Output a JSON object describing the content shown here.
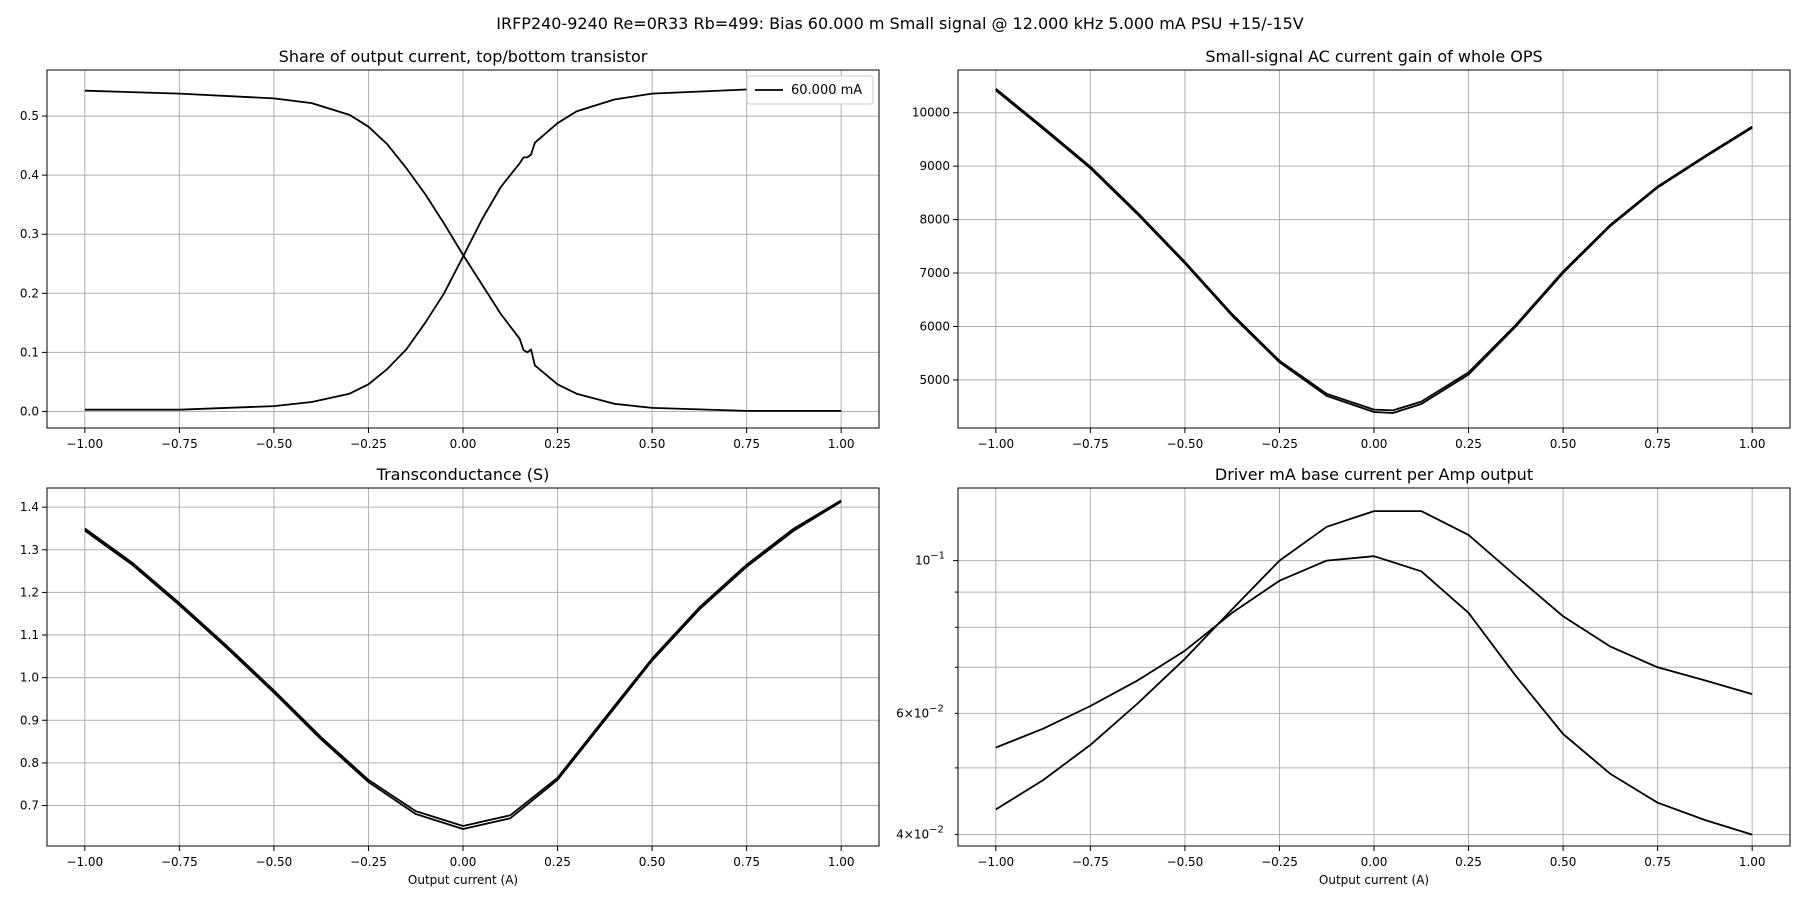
{
  "figure": {
    "suptitle": "IRFP240-9240 Re=0R33 Rb=499: Bias 60.000 m Small signal @ 12.000 kHz 5.000 mA PSU +15/-15V",
    "line_color": "#000000",
    "grid_color": "#b0b0b0"
  },
  "chart_data": [
    {
      "type": "line",
      "title": "Share of output current, top/bottom transistor",
      "xlabel": "",
      "ylabel": "",
      "xlim": [
        -1.1,
        1.1
      ],
      "ylim": [
        -0.028,
        0.578
      ],
      "xticks": [
        -1.0,
        -0.75,
        -0.5,
        -0.25,
        0.0,
        0.25,
        0.5,
        0.75,
        1.0
      ],
      "xtick_labels": [
        "−1.00",
        "−0.75",
        "−0.50",
        "−0.25",
        "0.00",
        "0.25",
        "0.50",
        "0.75",
        "1.00"
      ],
      "yticks": [
        0.0,
        0.1,
        0.2,
        0.3,
        0.4,
        0.5
      ],
      "ytick_labels": [
        "0.0",
        "0.1",
        "0.2",
        "0.3",
        "0.4",
        "0.5"
      ],
      "grid": true,
      "legend": {
        "position": "top-right",
        "entries": [
          "60.000 mA"
        ]
      },
      "series": [
        {
          "name": "60.000 mA",
          "x": [
            -1.0,
            -0.75,
            -0.5,
            -0.4,
            -0.3,
            -0.25,
            -0.2,
            -0.15,
            -0.1,
            -0.05,
            0.0,
            0.05,
            0.1,
            0.15,
            0.16,
            0.17,
            0.18,
            0.19,
            0.25,
            0.3,
            0.4,
            0.5,
            0.75,
            1.0
          ],
          "y": [
            0.543,
            0.538,
            0.53,
            0.522,
            0.502,
            0.482,
            0.452,
            0.412,
            0.368,
            0.318,
            0.265,
            0.215,
            0.165,
            0.123,
            0.104,
            0.1,
            0.105,
            0.078,
            0.046,
            0.03,
            0.013,
            0.006,
            0.001,
            0.001
          ]
        },
        {
          "x": [
            -1.0,
            -0.75,
            -0.5,
            -0.4,
            -0.3,
            -0.25,
            -0.2,
            -0.15,
            -0.1,
            -0.05,
            0.0,
            0.05,
            0.1,
            0.15,
            0.16,
            0.17,
            0.18,
            0.19,
            0.25,
            0.3,
            0.4,
            0.5,
            0.75,
            1.0
          ],
          "y": [
            0.003,
            0.003,
            0.009,
            0.016,
            0.03,
            0.046,
            0.072,
            0.105,
            0.15,
            0.2,
            0.262,
            0.325,
            0.38,
            0.42,
            0.43,
            0.43,
            0.435,
            0.455,
            0.488,
            0.508,
            0.528,
            0.538,
            0.545,
            0.547
          ]
        }
      ]
    },
    {
      "type": "line",
      "title": "Small-signal AC current gain of whole OPS",
      "xlabel": "",
      "ylabel": "",
      "xlim": [
        -1.1,
        1.1
      ],
      "ylim": [
        4100,
        10800
      ],
      "xticks": [
        -1.0,
        -0.75,
        -0.5,
        -0.25,
        0.0,
        0.25,
        0.5,
        0.75,
        1.0
      ],
      "xtick_labels": [
        "−1.00",
        "−0.75",
        "−0.50",
        "−0.25",
        "0.00",
        "0.25",
        "0.50",
        "0.75",
        "1.00"
      ],
      "yticks": [
        5000,
        6000,
        7000,
        8000,
        9000,
        10000
      ],
      "ytick_labels": [
        "5000",
        "6000",
        "7000",
        "8000",
        "9000",
        "10000"
      ],
      "grid": true,
      "series": [
        {
          "x": [
            -1.0,
            -0.875,
            -0.75,
            -0.625,
            -0.5,
            -0.375,
            -0.25,
            -0.125,
            0.0,
            0.05,
            0.125,
            0.25,
            0.375,
            0.5,
            0.625,
            0.75,
            0.875,
            1.0
          ],
          "y": [
            10420,
            9700,
            8960,
            8100,
            7180,
            6200,
            5330,
            4700,
            4400,
            4380,
            4550,
            5100,
            6000,
            7000,
            7880,
            8600,
            9170,
            9720
          ]
        },
        {
          "x": [
            -1.0,
            -0.875,
            -0.75,
            -0.625,
            -0.5,
            -0.375,
            -0.25,
            -0.125,
            0.0,
            0.05,
            0.125,
            0.25,
            0.375,
            0.5,
            0.625,
            0.75,
            0.875,
            1.0
          ],
          "y": [
            10450,
            9730,
            8990,
            8130,
            7210,
            6230,
            5360,
            4740,
            4445,
            4430,
            4595,
            5140,
            6030,
            7030,
            7905,
            8620,
            9190,
            9740
          ]
        }
      ]
    },
    {
      "type": "line",
      "title": "Transconductance (S)",
      "xlabel": "Output current (A)",
      "ylabel": "",
      "xlim": [
        -1.1,
        1.1
      ],
      "ylim": [
        0.605,
        1.445
      ],
      "xticks": [
        -1.0,
        -0.75,
        -0.5,
        -0.25,
        0.0,
        0.25,
        0.5,
        0.75,
        1.0
      ],
      "xtick_labels": [
        "−1.00",
        "−0.75",
        "−0.50",
        "−0.25",
        "0.00",
        "0.25",
        "0.50",
        "0.75",
        "1.00"
      ],
      "yticks": [
        0.7,
        0.8,
        0.9,
        1.0,
        1.1,
        1.2,
        1.3,
        1.4
      ],
      "ytick_labels": [
        "0.7",
        "0.8",
        "0.9",
        "1.0",
        "1.1",
        "1.2",
        "1.3",
        "1.4"
      ],
      "grid": true,
      "series": [
        {
          "x": [
            -1.0,
            -0.875,
            -0.75,
            -0.625,
            -0.5,
            -0.375,
            -0.25,
            -0.125,
            0.0,
            0.125,
            0.25,
            0.375,
            0.5,
            0.625,
            0.75,
            0.875,
            1.0
          ],
          "y": [
            1.345,
            1.265,
            1.17,
            1.07,
            0.965,
            0.855,
            0.755,
            0.68,
            0.645,
            0.67,
            0.76,
            0.9,
            1.04,
            1.16,
            1.26,
            1.345,
            1.413
          ]
        },
        {
          "x": [
            -1.0,
            -0.875,
            -0.75,
            -0.625,
            -0.5,
            -0.375,
            -0.25,
            -0.125,
            0.0,
            0.125,
            0.25,
            0.375,
            0.5,
            0.625,
            0.75,
            0.875,
            1.0
          ],
          "y": [
            1.35,
            1.27,
            1.175,
            1.075,
            0.97,
            0.86,
            0.76,
            0.687,
            0.652,
            0.677,
            0.765,
            0.905,
            1.045,
            1.165,
            1.265,
            1.35,
            1.416
          ]
        }
      ]
    },
    {
      "type": "line",
      "title": "Driver mA base current per Amp output",
      "xlabel": "Output current (A)",
      "ylabel": "",
      "yscale": "log",
      "xlim": [
        -1.1,
        1.1
      ],
      "ylim": [
        0.0385,
        0.1275
      ],
      "xticks": [
        -1.0,
        -0.75,
        -0.5,
        -0.25,
        0.0,
        0.25,
        0.5,
        0.75,
        1.0
      ],
      "xtick_labels": [
        "−1.00",
        "−0.75",
        "−0.50",
        "−0.25",
        "0.00",
        "0.25",
        "0.50",
        "0.75",
        "1.00"
      ],
      "yticks_major": [
        0.1
      ],
      "ytick_major_labels": [
        "10"
      ],
      "ytick_major_exponents": [
        "−1"
      ],
      "yticks_minor": [
        0.04,
        0.05,
        0.06,
        0.07,
        0.08,
        0.09
      ],
      "ytick_minor_labels": [
        "",
        "",
        "6×10",
        "",
        "",
        ""
      ],
      "ytick_minor_exponents": [
        "",
        "",
        "−2",
        "",
        "",
        ""
      ],
      "ytick_minor_label_alt": {
        "0.04": [
          "4×10",
          "−2"
        ]
      },
      "grid": true,
      "series": [
        {
          "x": [
            -1.0,
            -0.875,
            -0.75,
            -0.625,
            -0.5,
            -0.375,
            -0.25,
            -0.125,
            0.0,
            0.125,
            0.25,
            0.375,
            0.5,
            0.625,
            0.75,
            0.875,
            1.0
          ],
          "y": [
            0.0435,
            0.048,
            0.054,
            0.062,
            0.072,
            0.085,
            0.1,
            0.112,
            0.118,
            0.118,
            0.109,
            0.095,
            0.083,
            0.075,
            0.07,
            0.067,
            0.064
          ]
        },
        {
          "x": [
            -1.0,
            -0.875,
            -0.75,
            -0.625,
            -0.5,
            -0.375,
            -0.25,
            -0.125,
            0.0,
            0.125,
            0.25,
            0.375,
            0.5,
            0.625,
            0.75,
            0.875,
            1.0
          ],
          "y": [
            0.0535,
            0.057,
            0.0615,
            0.067,
            0.074,
            0.084,
            0.0935,
            0.1,
            0.1015,
            0.0965,
            0.084,
            0.068,
            0.056,
            0.049,
            0.0445,
            0.042,
            0.04
          ]
        }
      ]
    }
  ]
}
